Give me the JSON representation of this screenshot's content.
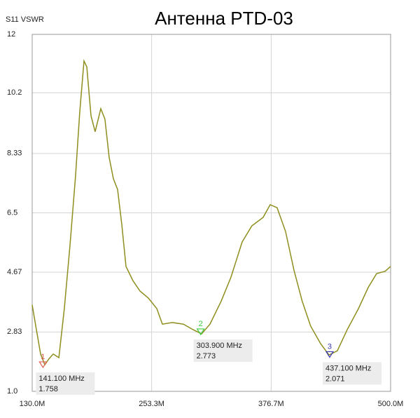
{
  "chart_data": {
    "type": "line",
    "title": "Антенна PTD-03",
    "y_label": "S11 VSWR",
    "x": [
      130,
      134.3,
      138.7,
      143,
      147.3,
      151.7,
      157.5,
      163.2,
      169,
      174.8,
      179.1,
      183.5,
      186.4,
      190.7,
      195,
      200.8,
      205.1,
      209.5,
      213.8,
      218.2,
      222.5,
      226.8,
      234,
      241.3,
      250,
      258.6,
      264.4,
      274.5,
      286.1,
      296.2,
      304.9,
      313.5,
      325,
      335.2,
      346.7,
      356.8,
      368.4,
      375.6,
      382.8,
      391.5,
      400.2,
      408.8,
      417.5,
      427.7,
      436.4,
      445,
      455.2,
      466.8,
      476.9,
      485.6,
      494.3,
      500
    ],
    "series": [
      {
        "name": "S11 VSWR",
        "color": "#8e8e1e",
        "values": [
          3.66,
          2.9,
          2.15,
          1.82,
          2.0,
          2.15,
          2.04,
          3.55,
          5.5,
          7.66,
          9.6,
          11.18,
          11.0,
          9.49,
          9.0,
          9.71,
          9.39,
          8.2,
          7.55,
          7.22,
          6.14,
          4.85,
          4.41,
          4.09,
          3.87,
          3.55,
          3.07,
          3.12,
          3.07,
          2.9,
          2.77,
          3.07,
          3.77,
          4.52,
          5.6,
          6.1,
          6.36,
          6.75,
          6.66,
          5.93,
          4.74,
          3.77,
          3.01,
          2.47,
          2.12,
          2.25,
          2.9,
          3.55,
          4.2,
          4.63,
          4.7,
          4.85
        ]
      }
    ],
    "markers": [
      {
        "label": "1",
        "x": 141.1,
        "value": 1.758,
        "x_label": "141.100 MHz",
        "color": "#e05a4a"
      },
      {
        "label": "2",
        "x": 303.9,
        "value": 2.773,
        "x_label": "303.900 MHz",
        "color": "#3ccf3c"
      },
      {
        "label": "3",
        "x": 437.1,
        "value": 2.071,
        "x_label": "437.100 MHz",
        "color": "#3a3ab0"
      }
    ],
    "xlim": [
      130,
      500
    ],
    "xticks": [
      {
        "value": 130,
        "label": "130.0M"
      },
      {
        "value": 253.3,
        "label": "253.3M"
      },
      {
        "value": 376.7,
        "label": "376.7M"
      },
      {
        "value": 500,
        "label": "500.0M"
      }
    ],
    "ylim": [
      1,
      12
    ],
    "yticks": [
      {
        "value": 1,
        "label": "1.0"
      },
      2.83,
      4.67,
      6.5,
      8.33,
      10.2,
      12
    ],
    "grid": true
  }
}
